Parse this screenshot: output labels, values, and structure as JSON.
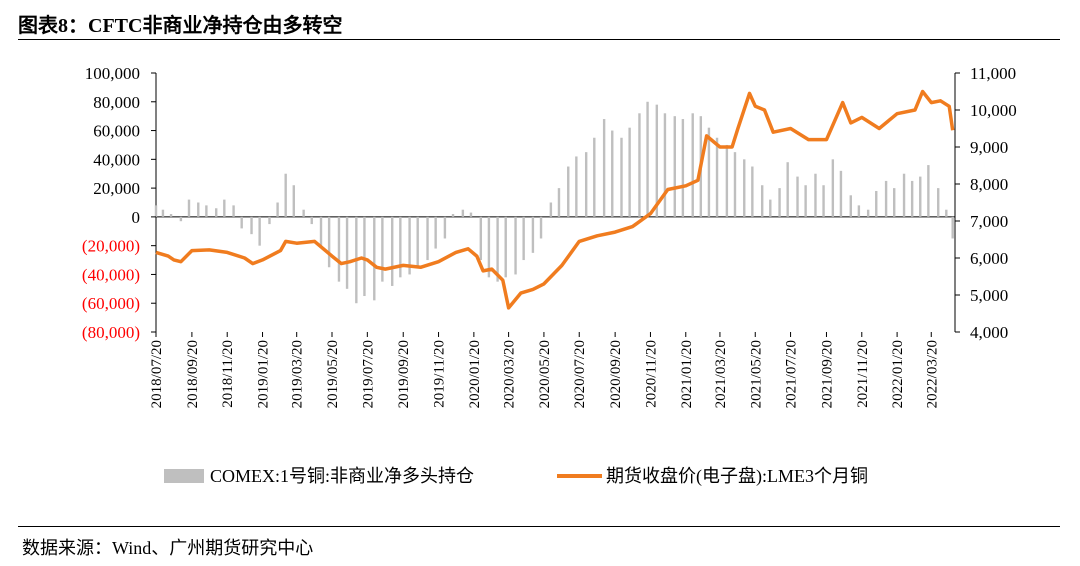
{
  "header": {
    "title": "图表8：CFTC非商业净持仓由多转空"
  },
  "footer": {
    "source": "数据来源：Wind、广州期货研究中心"
  },
  "chart_data": {
    "type": "bar",
    "title": "图表8：CFTC非商业净持仓由多转空",
    "x_ticks": [
      "2018/07/20",
      "2018/09/20",
      "2018/11/20",
      "2019/01/20",
      "2019/03/20",
      "2019/05/20",
      "2019/07/20",
      "2019/09/20",
      "2019/11/20",
      "2020/01/20",
      "2020/03/20",
      "2020/05/20",
      "2020/07/20",
      "2020/09/20",
      "2020/11/20",
      "2021/01/20",
      "2021/03/20",
      "2021/05/20",
      "2021/07/20",
      "2021/09/20",
      "2021/11/20",
      "2022/01/20",
      "2022/03/20"
    ],
    "y_left": {
      "ylim": [
        -80000,
        100000
      ],
      "ticks": [
        100000,
        80000,
        60000,
        40000,
        20000,
        0,
        -20000,
        -40000,
        -60000,
        -80000
      ],
      "tick_labels": [
        "100,000",
        "80,000",
        "60,000",
        "40,000",
        "20,000",
        "0",
        "(20,000)",
        "(40,000)",
        "(60,000)",
        "(80,000)"
      ],
      "negative_color": "#ff0000"
    },
    "y_right": {
      "ylim": [
        4000,
        11000
      ],
      "ticks": [
        11000,
        10000,
        9000,
        8000,
        7000,
        6000,
        5000,
        4000
      ],
      "tick_labels": [
        "11,000",
        "10,000",
        "9,000",
        "8,000",
        "7,000",
        "6,000",
        "5,000",
        "4,000"
      ]
    },
    "x_range": [
      "2018/07/20",
      "2022/04/30"
    ],
    "legend_position": "bottom",
    "series": [
      {
        "name": "COMEX:1号铜:非商业净多头持仓",
        "type": "bar",
        "axis": "left",
        "color": "#bfbfbf",
        "points": [
          [
            "2018/07/20",
            8000
          ],
          [
            "2018/08/01",
            5000
          ],
          [
            "2018/08/15",
            2000
          ],
          [
            "2018/09/01",
            -3000
          ],
          [
            "2018/09/15",
            12000
          ],
          [
            "2018/10/01",
            10000
          ],
          [
            "2018/10/15",
            8000
          ],
          [
            "2018/11/01",
            6000
          ],
          [
            "2018/11/15",
            12000
          ],
          [
            "2018/12/01",
            8000
          ],
          [
            "2018/12/15",
            -8000
          ],
          [
            "2019/01/01",
            -12000
          ],
          [
            "2019/01/15",
            -20000
          ],
          [
            "2019/02/01",
            -5000
          ],
          [
            "2019/02/15",
            10000
          ],
          [
            "2019/03/01",
            30000
          ],
          [
            "2019/03/15",
            22000
          ],
          [
            "2019/04/01",
            5000
          ],
          [
            "2019/04/15",
            -5000
          ],
          [
            "2019/05/01",
            -20000
          ],
          [
            "2019/05/15",
            -35000
          ],
          [
            "2019/06/01",
            -45000
          ],
          [
            "2019/06/15",
            -50000
          ],
          [
            "2019/07/01",
            -60000
          ],
          [
            "2019/07/15",
            -55000
          ],
          [
            "2019/08/01",
            -58000
          ],
          [
            "2019/08/15",
            -45000
          ],
          [
            "2019/09/01",
            -48000
          ],
          [
            "2019/09/15",
            -42000
          ],
          [
            "2019/10/01",
            -40000
          ],
          [
            "2019/10/15",
            -35000
          ],
          [
            "2019/11/01",
            -30000
          ],
          [
            "2019/11/15",
            -22000
          ],
          [
            "2019/12/01",
            -15000
          ],
          [
            "2019/12/15",
            2000
          ],
          [
            "2020/01/01",
            5000
          ],
          [
            "2020/01/15",
            3000
          ],
          [
            "2020/02/01",
            -30000
          ],
          [
            "2020/02/15",
            -42000
          ],
          [
            "2020/03/01",
            -45000
          ],
          [
            "2020/03/15",
            -42000
          ],
          [
            "2020/04/01",
            -40000
          ],
          [
            "2020/04/15",
            -30000
          ],
          [
            "2020/05/01",
            -25000
          ],
          [
            "2020/05/15",
            -15000
          ],
          [
            "2020/06/01",
            10000
          ],
          [
            "2020/06/15",
            20000
          ],
          [
            "2020/07/01",
            35000
          ],
          [
            "2020/07/15",
            42000
          ],
          [
            "2020/08/01",
            45000
          ],
          [
            "2020/08/15",
            55000
          ],
          [
            "2020/09/01",
            68000
          ],
          [
            "2020/09/15",
            60000
          ],
          [
            "2020/10/01",
            55000
          ],
          [
            "2020/10/15",
            62000
          ],
          [
            "2020/11/01",
            72000
          ],
          [
            "2020/11/15",
            80000
          ],
          [
            "2020/12/01",
            78000
          ],
          [
            "2020/12/15",
            72000
          ],
          [
            "2021/01/01",
            70000
          ],
          [
            "2021/01/15",
            68000
          ],
          [
            "2021/02/01",
            72000
          ],
          [
            "2021/02/15",
            70000
          ],
          [
            "2021/03/01",
            62000
          ],
          [
            "2021/03/15",
            55000
          ],
          [
            "2021/04/01",
            50000
          ],
          [
            "2021/04/15",
            45000
          ],
          [
            "2021/05/01",
            40000
          ],
          [
            "2021/05/15",
            35000
          ],
          [
            "2021/06/01",
            22000
          ],
          [
            "2021/06/15",
            12000
          ],
          [
            "2021/07/01",
            20000
          ],
          [
            "2021/07/15",
            38000
          ],
          [
            "2021/08/01",
            28000
          ],
          [
            "2021/08/15",
            22000
          ],
          [
            "2021/09/01",
            30000
          ],
          [
            "2021/09/15",
            22000
          ],
          [
            "2021/10/01",
            40000
          ],
          [
            "2021/10/15",
            32000
          ],
          [
            "2021/11/01",
            15000
          ],
          [
            "2021/11/15",
            8000
          ],
          [
            "2021/12/01",
            5000
          ],
          [
            "2021/12/15",
            18000
          ],
          [
            "2022/01/01",
            25000
          ],
          [
            "2022/01/15",
            20000
          ],
          [
            "2022/02/01",
            30000
          ],
          [
            "2022/02/15",
            25000
          ],
          [
            "2022/03/01",
            28000
          ],
          [
            "2022/03/15",
            36000
          ],
          [
            "2022/04/01",
            20000
          ],
          [
            "2022/04/15",
            5000
          ],
          [
            "2022/04/26",
            -15000
          ]
        ]
      },
      {
        "name": "期货收盘价(电子盘):LME3个月铜",
        "type": "line",
        "axis": "right",
        "color": "#f07c1f",
        "points": [
          [
            "2018/07/20",
            6150
          ],
          [
            "2018/08/10",
            6050
          ],
          [
            "2018/08/20",
            5950
          ],
          [
            "2018/09/01",
            5900
          ],
          [
            "2018/09/20",
            6200
          ],
          [
            "2018/10/20",
            6220
          ],
          [
            "2018/11/20",
            6150
          ],
          [
            "2018/12/20",
            6000
          ],
          [
            "2019/01/03",
            5850
          ],
          [
            "2019/01/20",
            5950
          ],
          [
            "2019/02/20",
            6200
          ],
          [
            "2019/03/01",
            6450
          ],
          [
            "2019/03/20",
            6400
          ],
          [
            "2019/04/20",
            6450
          ],
          [
            "2019/05/20",
            6050
          ],
          [
            "2019/06/05",
            5850
          ],
          [
            "2019/06/20",
            5900
          ],
          [
            "2019/07/10",
            6000
          ],
          [
            "2019/07/20",
            5950
          ],
          [
            "2019/08/05",
            5750
          ],
          [
            "2019/08/20",
            5700
          ],
          [
            "2019/09/20",
            5800
          ],
          [
            "2019/10/20",
            5750
          ],
          [
            "2019/11/20",
            5900
          ],
          [
            "2019/12/20",
            6150
          ],
          [
            "2020/01/10",
            6250
          ],
          [
            "2020/01/25",
            6050
          ],
          [
            "2020/02/05",
            5650
          ],
          [
            "2020/02/20",
            5700
          ],
          [
            "2020/03/10",
            5400
          ],
          [
            "2020/03/20",
            4650
          ],
          [
            "2020/04/10",
            5050
          ],
          [
            "2020/05/01",
            5150
          ],
          [
            "2020/05/20",
            5300
          ],
          [
            "2020/06/20",
            5800
          ],
          [
            "2020/07/20",
            6450
          ],
          [
            "2020/08/20",
            6600
          ],
          [
            "2020/09/20",
            6700
          ],
          [
            "2020/10/20",
            6850
          ],
          [
            "2020/11/20",
            7200
          ],
          [
            "2020/12/20",
            7850
          ],
          [
            "2021/01/20",
            7950
          ],
          [
            "2021/02/10",
            8100
          ],
          [
            "2021/02/25",
            9300
          ],
          [
            "2021/03/20",
            9000
          ],
          [
            "2021/04/10",
            9000
          ],
          [
            "2021/04/20",
            9500
          ],
          [
            "2021/05/10",
            10450
          ],
          [
            "2021/05/20",
            10100
          ],
          [
            "2021/06/05",
            10000
          ],
          [
            "2021/06/20",
            9400
          ],
          [
            "2021/07/20",
            9500
          ],
          [
            "2021/08/20",
            9200
          ],
          [
            "2021/09/20",
            9200
          ],
          [
            "2021/10/18",
            10200
          ],
          [
            "2021/11/01",
            9650
          ],
          [
            "2021/11/20",
            9800
          ],
          [
            "2021/12/20",
            9500
          ],
          [
            "2022/01/20",
            9900
          ],
          [
            "2022/02/20",
            10000
          ],
          [
            "2022/03/05",
            10500
          ],
          [
            "2022/03/20",
            10200
          ],
          [
            "2022/04/05",
            10250
          ],
          [
            "2022/04/20",
            10100
          ],
          [
            "2022/04/26",
            9450
          ]
        ]
      }
    ]
  }
}
